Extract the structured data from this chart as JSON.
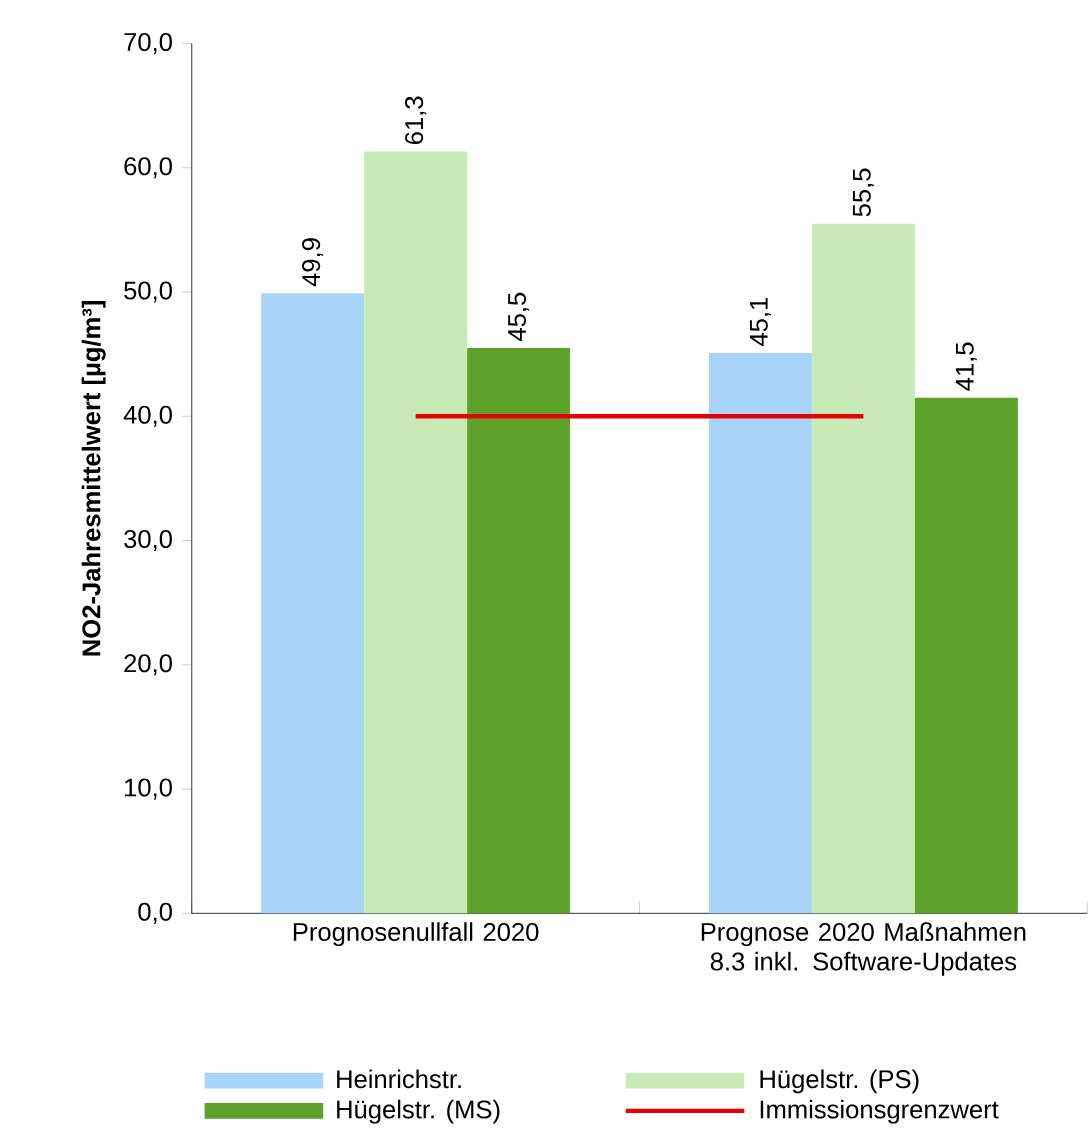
{
  "chart_data": {
    "type": "bar",
    "ylabel": "NO2-Jahresmittelwert [µg/m³]",
    "categories": [
      "Prognosenullfall 2020",
      "Prognose 2020 Maßnahmen 8.3 inkl. Software-Updates"
    ],
    "series": [
      {
        "name": "Heinrichstr.",
        "color": "#a9d4f9",
        "values": [
          49.9,
          45.1
        ],
        "value_labels": [
          "49,9",
          "45,1"
        ]
      },
      {
        "name": "Hügelstr. (PS)",
        "color": "#c8eab6",
        "values": [
          61.3,
          55.5
        ],
        "value_labels": [
          "61,3",
          "55,5"
        ]
      },
      {
        "name": "Hügelstr. (MS)",
        "color": "#5ea22b",
        "values": [
          45.5,
          41.5
        ],
        "value_labels": [
          "45,5",
          "41,5"
        ]
      },
      {
        "name": "Immissionsgrenzwert",
        "type": "line",
        "color": "#e60000",
        "values": [
          40,
          40
        ]
      }
    ],
    "ylim": [
      0,
      70
    ],
    "yticks": [
      {
        "value": 0,
        "label": "0,0"
      },
      {
        "value": 10,
        "label": "10,0"
      },
      {
        "value": 20,
        "label": "20,0"
      },
      {
        "value": 30,
        "label": "30,0"
      },
      {
        "value": 40,
        "label": "40,0"
      },
      {
        "value": 50,
        "label": "50,0"
      },
      {
        "value": 60,
        "label": "60,0"
      },
      {
        "value": 70,
        "label": "70,0"
      }
    ],
    "legend": "bottom",
    "grid": false
  }
}
